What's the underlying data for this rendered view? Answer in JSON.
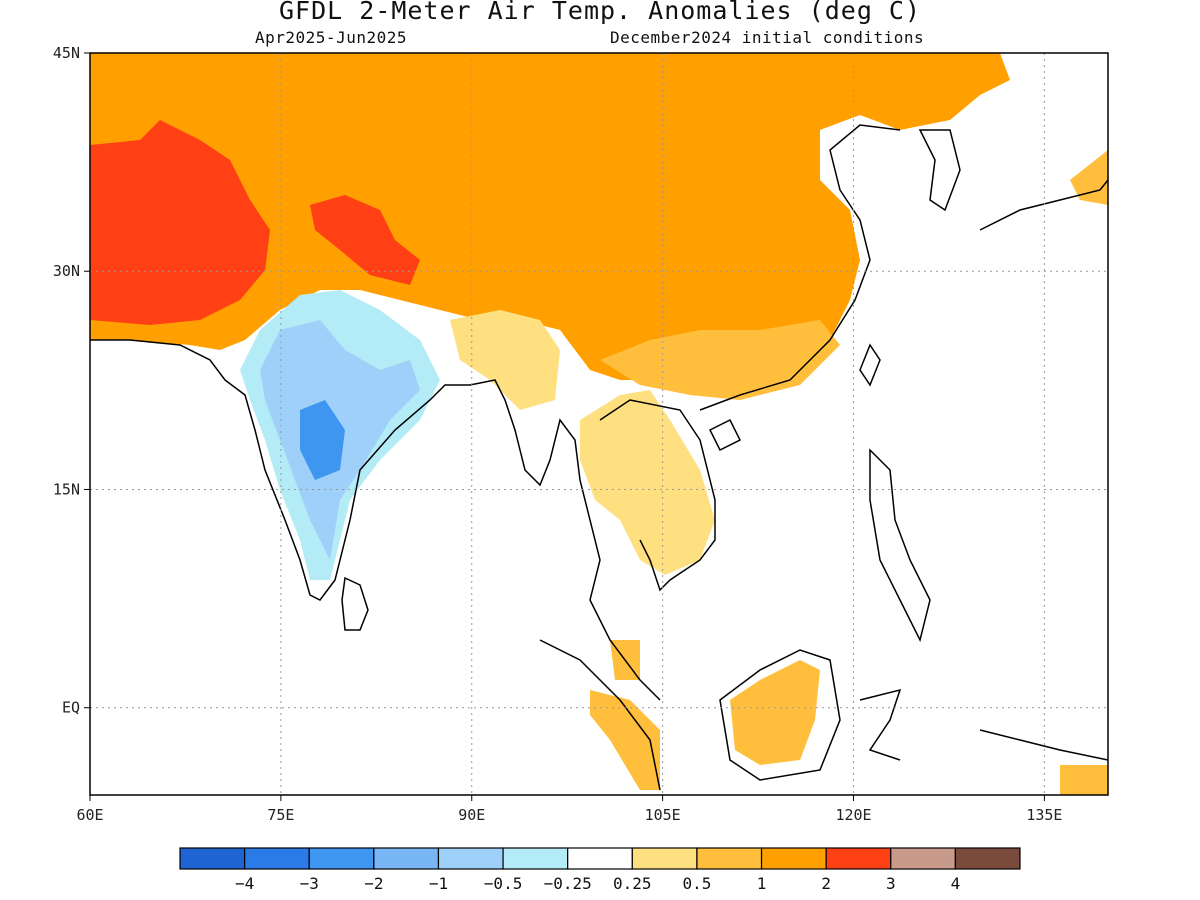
{
  "map": {
    "title": "GFDL 2-Meter Air Temp. Anomalies (deg C)",
    "period": "Apr2025-Jun2025",
    "initial_conditions": "December2024 initial conditions",
    "lon_range": [
      60,
      140
    ],
    "lat_range": [
      -6,
      45
    ],
    "lon_ticks": [
      "60E",
      "75E",
      "90E",
      "105E",
      "120E",
      "135E"
    ],
    "lat_ticks": [
      "45N",
      "30N",
      "15N",
      "EQ"
    ],
    "grid": "dotted"
  },
  "colorbar": {
    "colors": [
      "#1f64d2",
      "#2a7ae8",
      "#3f96f0",
      "#78b6f5",
      "#9fd0fa",
      "#b3ecf7",
      "#ffffff",
      "#ffe080",
      "#ffbe3c",
      "#ffa000",
      "#ff3f14",
      "#c89a8c",
      "#7a4a3c"
    ],
    "labels": [
      "−4",
      "−3",
      "−2",
      "−1",
      "−0.5",
      "−0.25",
      "0.25",
      "0.5",
      "1",
      "2",
      "3",
      "4"
    ]
  },
  "regions": {
    "strong_warm": "#ff3f14",
    "warm": "#ffa000",
    "moderate_warm": "#ffbe3c",
    "slight_warm": "#ffe080",
    "neutral": "#ffffff",
    "slight_cool": "#b3ecf7",
    "cool": "#9fd0fa",
    "cooler": "#78b6f5",
    "coolest": "#3f96f0",
    "coast": "#000000"
  }
}
